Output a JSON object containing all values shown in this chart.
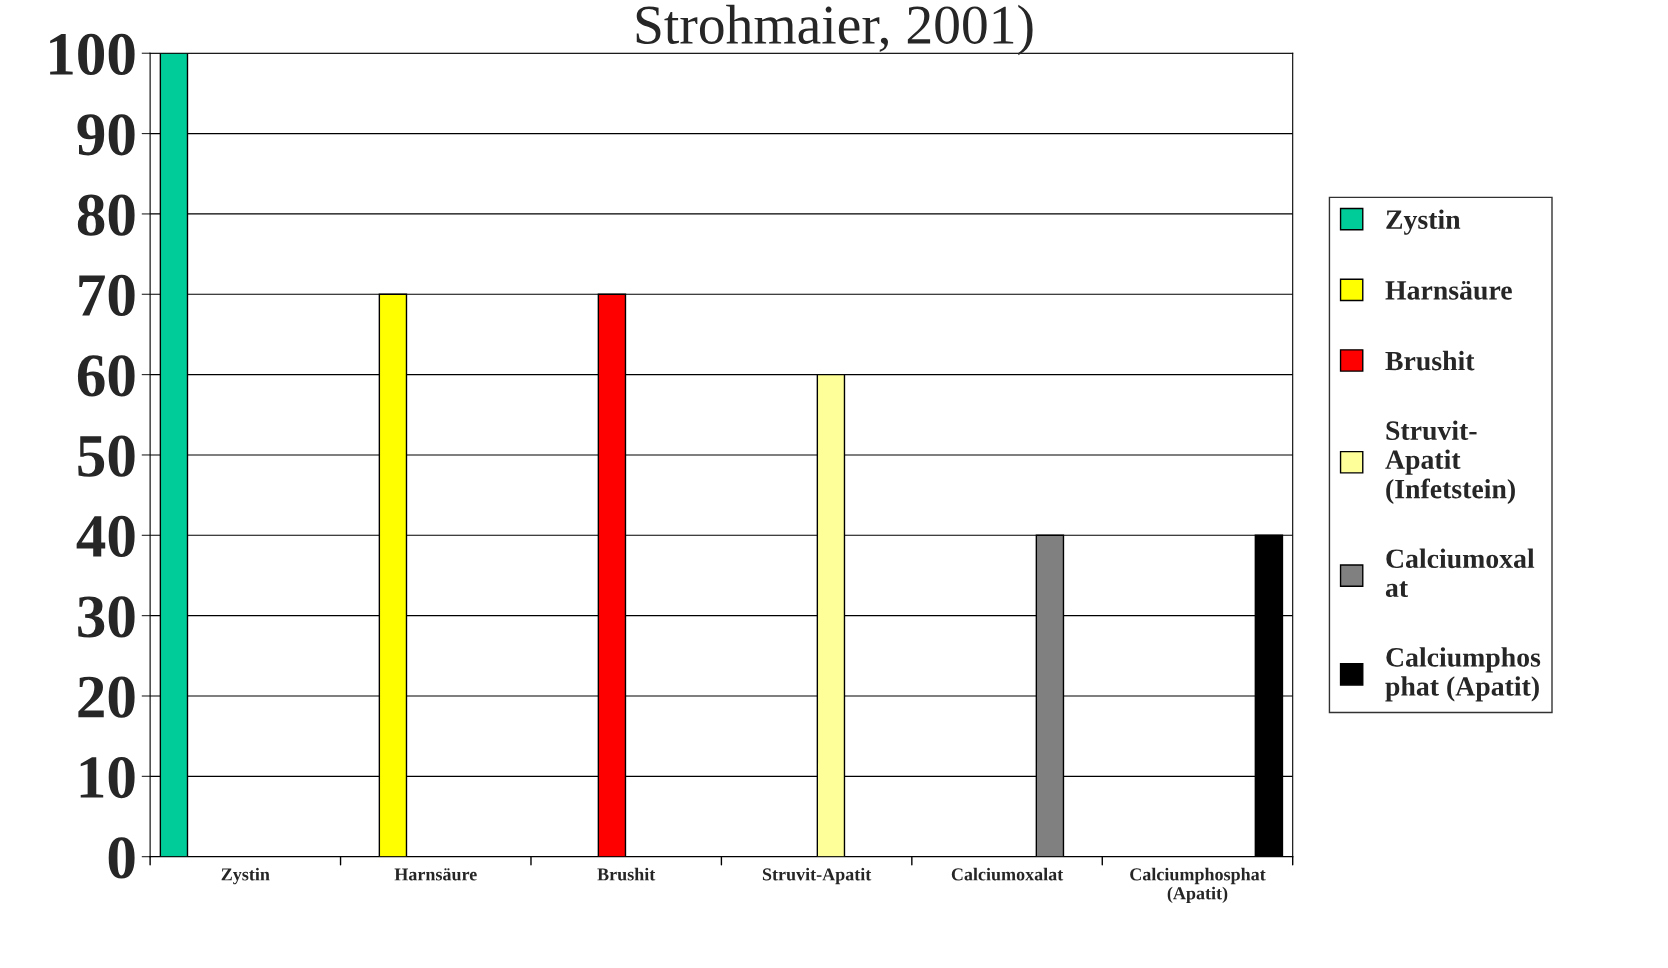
{
  "chart_data": {
    "type": "bar",
    "title": "Strohmaier, 2001)",
    "categories": [
      "Zystin",
      "Harnsäure",
      "Brushit",
      "Struvit-Apatit",
      "Calciumoxalat",
      "Calciumphosphat\n(Apatit)"
    ],
    "series": [
      {
        "name": "Zystin",
        "color": "#00cc99",
        "values": [
          100,
          null,
          null,
          null,
          null,
          null
        ]
      },
      {
        "name": "Harnsäure",
        "color": "#ffff00",
        "values": [
          null,
          70,
          null,
          null,
          null,
          null
        ]
      },
      {
        "name": "Brushit",
        "color": "#ff0000",
        "values": [
          null,
          null,
          70,
          null,
          null,
          null
        ]
      },
      {
        "name": "Struvit-\nApatit\n(Infetstein)",
        "color": "#ffff99",
        "values": [
          null,
          null,
          null,
          60,
          null,
          null
        ]
      },
      {
        "name": "Calciumoxal\nat",
        "color": "#808080",
        "values": [
          null,
          null,
          null,
          null,
          40,
          null
        ]
      },
      {
        "name": "Calciumphos\nphat (Apatit)",
        "color": "#000000",
        "values": [
          null,
          null,
          null,
          null,
          null,
          40
        ]
      }
    ],
    "ylim": [
      0,
      100
    ],
    "yticks": [
      0,
      10,
      20,
      30,
      40,
      50,
      60,
      70,
      80,
      90,
      100
    ],
    "grid": "y",
    "legend": "right"
  }
}
